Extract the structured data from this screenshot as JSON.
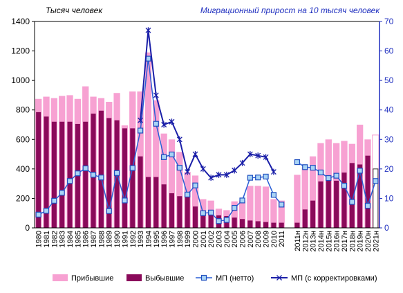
{
  "chart_data": {
    "type": "bar",
    "left_axis_label": "Тысяч человек",
    "right_axis_label": "Миграционный прирост на 10 тысяч человек",
    "categories": [
      "1980",
      "1981",
      "1982",
      "1983",
      "1984",
      "1985",
      "1986",
      "1987",
      "1988",
      "1989",
      "1990",
      "1991",
      "1992",
      "1993",
      "1994",
      "1995",
      "1996",
      "1997",
      "1998",
      "1999",
      "2000",
      "2001",
      "2002",
      "2003",
      "2004",
      "2005",
      "2006",
      "2007",
      "2008",
      "2009",
      "2010",
      "2011",
      "",
      "2011н",
      "2012н",
      "2013н",
      "2014н",
      "2015н",
      "2016н",
      "2017н",
      "2018н",
      "2019н",
      "2020н",
      "2021н"
    ],
    "ylim_left": [
      0,
      1400
    ],
    "yticks_left": [
      "0",
      "200",
      "400",
      "600",
      "800",
      "1000",
      "1200",
      "1400"
    ],
    "ylim_right": [
      0,
      70
    ],
    "yticks_right": [
      "0",
      "10",
      "20",
      "30",
      "40",
      "50",
      "60",
      "70"
    ],
    "series": [
      {
        "name": "Прибывшие",
        "axis": "left",
        "kind": "bar",
        "color": "#f7a1d2",
        "values": [
          875,
          890,
          880,
          895,
          900,
          875,
          960,
          890,
          880,
          855,
          915,
          695,
          925,
          925,
          1190,
          865,
          640,
          600,
          515,
          380,
          355,
          195,
          185,
          130,
          120,
          180,
          185,
          285,
          285,
          280,
          195,
          185,
          null,
          360,
          410,
          485,
          575,
          600,
          575,
          590,
          570,
          700,
          600,
          630
        ]
      },
      {
        "name": "Выбывшие",
        "axis": "left",
        "kind": "bar",
        "color": "#8a0a5a",
        "values": [
          785,
          755,
          720,
          720,
          720,
          705,
          720,
          775,
          795,
          745,
          730,
          675,
          675,
          485,
          345,
          345,
          295,
          235,
          215,
          215,
          145,
          105,
          105,
          85,
          80,
          70,
          60,
          50,
          45,
          40,
          35,
          35,
          null,
          35,
          125,
          185,
          315,
          320,
          320,
          375,
          440,
          430,
          490,
          400
        ]
      },
      {
        "name": "МП  (нетто)",
        "axis": "right",
        "kind": "line",
        "color": "#2a5fd6",
        "values": [
          4.5,
          5.8,
          9.2,
          11.9,
          15.9,
          18.5,
          20.2,
          18,
          17.1,
          5.7,
          18.6,
          9.3,
          20.3,
          33,
          57.4,
          35.3,
          24,
          24.9,
          20.4,
          11.3,
          14.4,
          5,
          5.2,
          2.3,
          2.7,
          6.8,
          9.3,
          17,
          17.1,
          17.4,
          11.2,
          7.9,
          null,
          22.3,
          20.6,
          20.4,
          18.8,
          16.9,
          17.7,
          14.3,
          8.8,
          19.4,
          7.5,
          15.9
        ]
      },
      {
        "name": "МП  (с корректировками)",
        "axis": "right",
        "kind": "line",
        "color": "#1a1fa8",
        "values": [
          null,
          null,
          null,
          null,
          null,
          null,
          null,
          null,
          null,
          null,
          null,
          null,
          null,
          36.5,
          67,
          45,
          35,
          36,
          30,
          19,
          25,
          20,
          17,
          18,
          18,
          19.5,
          22,
          25,
          24.5,
          24,
          19,
          null,
          null,
          null,
          null,
          null,
          null,
          null,
          null,
          null,
          null,
          null,
          null,
          null
        ]
      }
    ],
    "legend_position": "bottom"
  }
}
